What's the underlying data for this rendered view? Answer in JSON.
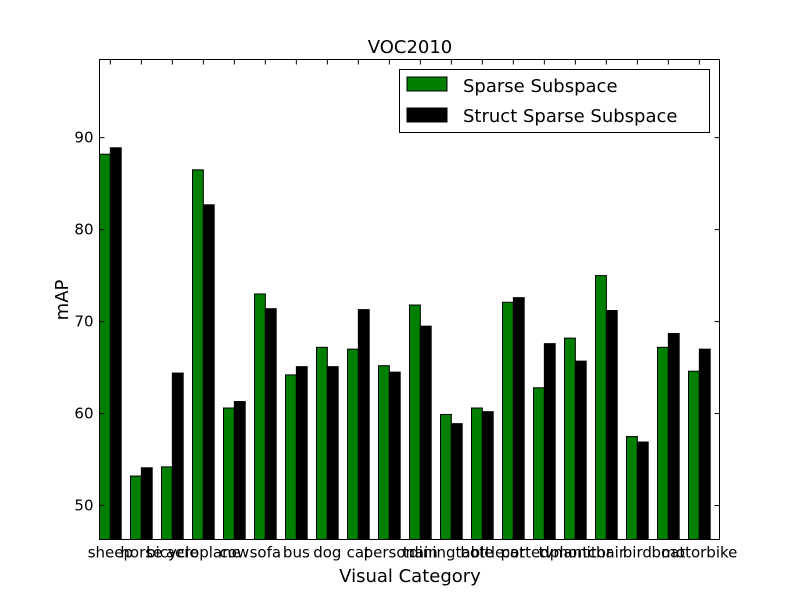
{
  "chart_data": {
    "type": "bar",
    "title": "VOC2010",
    "xlabel": "Visual Category",
    "ylabel": "mAP",
    "ylim": [
      46.3,
      98.5
    ],
    "yticks": [
      50,
      60,
      70,
      80,
      90
    ],
    "grid": false,
    "legend_position": "top-right",
    "categories": [
      "sheep",
      "horse",
      "bicycle",
      "aeroplane",
      "cow",
      "sofa",
      "bus",
      "dog",
      "cat",
      "person",
      "train",
      "diningtable",
      "bottle",
      "car",
      "pottedplant",
      "tvmonitor",
      "chair",
      "bird",
      "boat",
      "motorbike"
    ],
    "series": [
      {
        "name": "Sparse Subspace",
        "color": "#007f00",
        "values": [
          88.2,
          53.2,
          54.2,
          86.5,
          60.6,
          73.0,
          64.2,
          67.2,
          67.0,
          65.2,
          71.8,
          59.9,
          60.6,
          72.1,
          62.8,
          68.2,
          75.0,
          57.5,
          67.2,
          64.6
        ]
      },
      {
        "name": "Struct Sparse Subspace",
        "color": "#000000",
        "values": [
          88.9,
          54.1,
          64.4,
          82.7,
          61.3,
          71.4,
          65.1,
          65.1,
          71.3,
          64.5,
          69.5,
          58.9,
          60.2,
          72.6,
          67.6,
          65.7,
          71.2,
          56.9,
          68.7,
          67.0
        ]
      }
    ]
  }
}
